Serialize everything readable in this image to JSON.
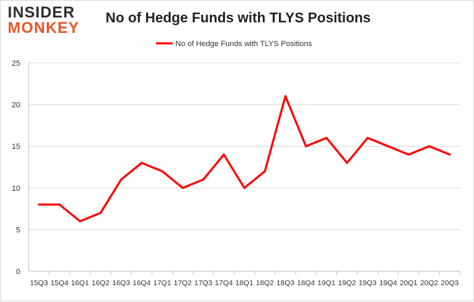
{
  "logo": {
    "line1": "INSIDER",
    "line2": "MONKEY"
  },
  "chart_data": {
    "type": "line",
    "title": "No of Hedge Funds with TLYS Positions",
    "categories": [
      "15Q3",
      "15Q4",
      "16Q1",
      "16Q2",
      "16Q3",
      "16Q4",
      "17Q1",
      "17Q2",
      "17Q3",
      "17Q4",
      "18Q1",
      "18Q2",
      "18Q3",
      "18Q4",
      "19Q1",
      "19Q2",
      "19Q3",
      "19Q4",
      "20Q1",
      "20Q2",
      "20Q3"
    ],
    "series": [
      {
        "name": "No of Hedge Funds with TLYS Positions",
        "values": [
          8,
          8,
          6,
          7,
          11,
          13,
          12,
          10,
          11,
          14,
          10,
          12,
          21,
          15,
          16,
          13,
          16,
          15,
          14,
          15,
          14
        ],
        "color": "#ff0000"
      }
    ],
    "ylim": [
      0,
      25
    ],
    "yticks": [
      0,
      5,
      10,
      15,
      20,
      25
    ],
    "grid": true,
    "legend": "top-center"
  }
}
